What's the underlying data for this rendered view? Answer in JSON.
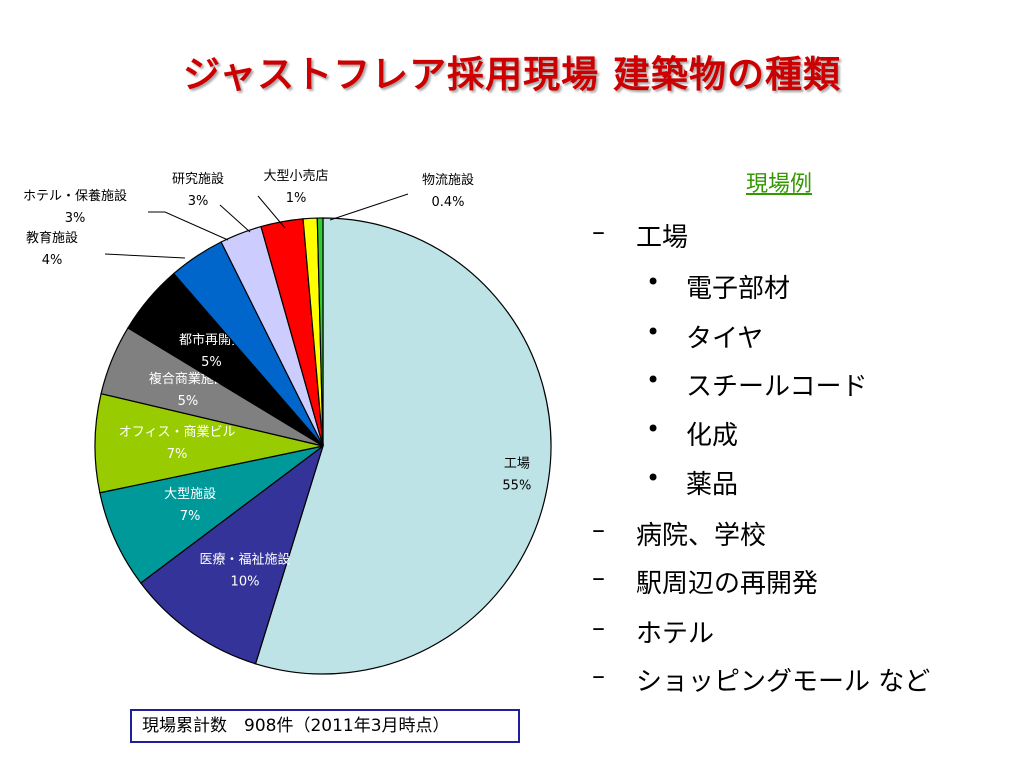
{
  "title": "ジャストフレア採用現場 建築物の種類",
  "chart_data": {
    "type": "pie",
    "start_angle_deg": 0,
    "direction": "clockwise",
    "slices": [
      {
        "name": "工場",
        "value": 55,
        "label": "55%",
        "color": "#bde3e6",
        "text_color": "#000000"
      },
      {
        "name": "医療・福祉施設",
        "value": 10,
        "label": "10%",
        "color": "#333399",
        "text_color": "#ffffff"
      },
      {
        "name": "大型施設",
        "value": 7,
        "label": "7%",
        "color": "#009999",
        "text_color": "#ffffff"
      },
      {
        "name": "オフィス・商業ビル",
        "value": 7,
        "label": "7%",
        "color": "#99cc00",
        "text_color": "#ffffff"
      },
      {
        "name": "複合商業施設",
        "value": 5,
        "label": "5%",
        "color": "#808080",
        "text_color": "#ffffff"
      },
      {
        "name": "都市再開発",
        "value": 5,
        "label": "5%",
        "color": "#000000",
        "text_color": "#ffffff"
      },
      {
        "name": "教育施設",
        "value": 4,
        "label": "4%",
        "color": "#0066cc",
        "text_color": "#000000"
      },
      {
        "name": "ホテル・保養施設",
        "value": 3,
        "label": "3%",
        "color": "#ccccff",
        "text_color": "#000000"
      },
      {
        "name": "研究施設",
        "value": 3,
        "label": "3%",
        "color": "#ff0000",
        "text_color": "#000000"
      },
      {
        "name": "大型小売店",
        "value": 1,
        "label": "1%",
        "color": "#ffff00",
        "text_color": "#000000"
      },
      {
        "name": "物流施設",
        "value": 0.4,
        "label": "0.4%",
        "color": "#33cc33",
        "text_color": "#000000"
      }
    ]
  },
  "examples": {
    "heading": "現場例",
    "items": [
      {
        "level": 1,
        "marker": "–",
        "text": "工場"
      },
      {
        "level": 2,
        "marker": "•",
        "text": "電子部材"
      },
      {
        "level": 2,
        "marker": "•",
        "text": "タイヤ"
      },
      {
        "level": 2,
        "marker": "•",
        "text": "スチールコード"
      },
      {
        "level": 2,
        "marker": "•",
        "text": "化成"
      },
      {
        "level": 2,
        "marker": "•",
        "text": "薬品"
      },
      {
        "level": 1,
        "marker": "–",
        "text": "病院、学校"
      },
      {
        "level": 1,
        "marker": "–",
        "text": "駅周辺の再開発"
      },
      {
        "level": 1,
        "marker": "–",
        "text": "ホテル"
      },
      {
        "level": 1,
        "marker": "–",
        "text": "ショッピングモール など"
      }
    ]
  },
  "footer": "現場累計数　908件（2011年3月時点）"
}
